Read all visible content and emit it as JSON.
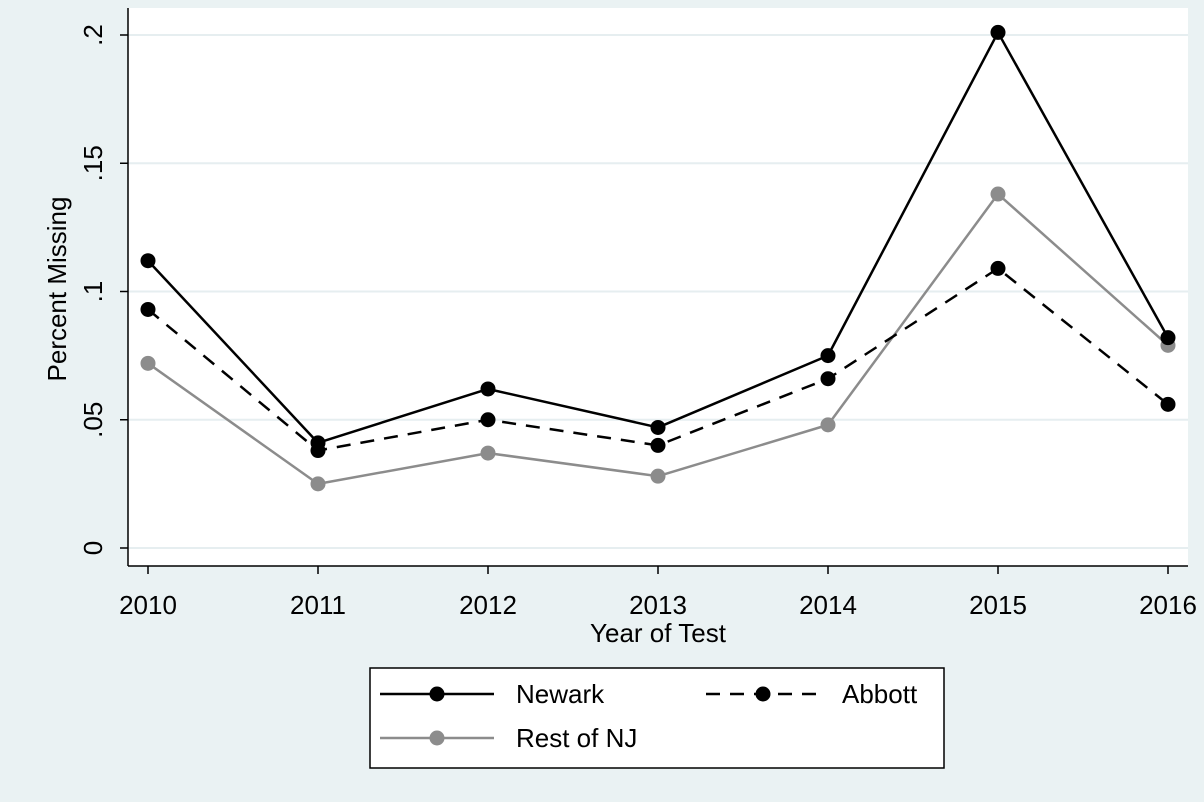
{
  "chart_data": {
    "type": "line",
    "title": "",
    "xlabel": "Year of Test",
    "ylabel": "Percent Missing",
    "x": [
      2010,
      2011,
      2012,
      2013,
      2014,
      2015,
      2016
    ],
    "x_tick_labels": [
      "2010",
      "2011",
      "2012",
      "2013",
      "2014",
      "2015",
      "2016"
    ],
    "y_ticks": [
      0,
      0.05,
      0.1,
      0.15,
      0.2
    ],
    "y_tick_labels": [
      "0",
      ".05",
      ".1",
      ".15",
      ".2"
    ],
    "ylim": [
      -0.01,
      0.21
    ],
    "grid": true,
    "legend_position": "bottom",
    "series": [
      {
        "name": "Newark",
        "values": [
          0.112,
          0.041,
          0.062,
          0.047,
          0.075,
          0.201,
          0.082
        ],
        "color": "#000000",
        "dash": "solid"
      },
      {
        "name": "Abbott",
        "values": [
          0.093,
          0.038,
          0.05,
          0.04,
          0.066,
          0.109,
          0.056
        ],
        "color": "#000000",
        "dash": "dashed"
      },
      {
        "name": "Rest of NJ",
        "values": [
          0.072,
          0.025,
          0.037,
          0.028,
          0.048,
          0.138,
          0.079
        ],
        "color": "#8c8c8c",
        "dash": "solid"
      }
    ]
  }
}
